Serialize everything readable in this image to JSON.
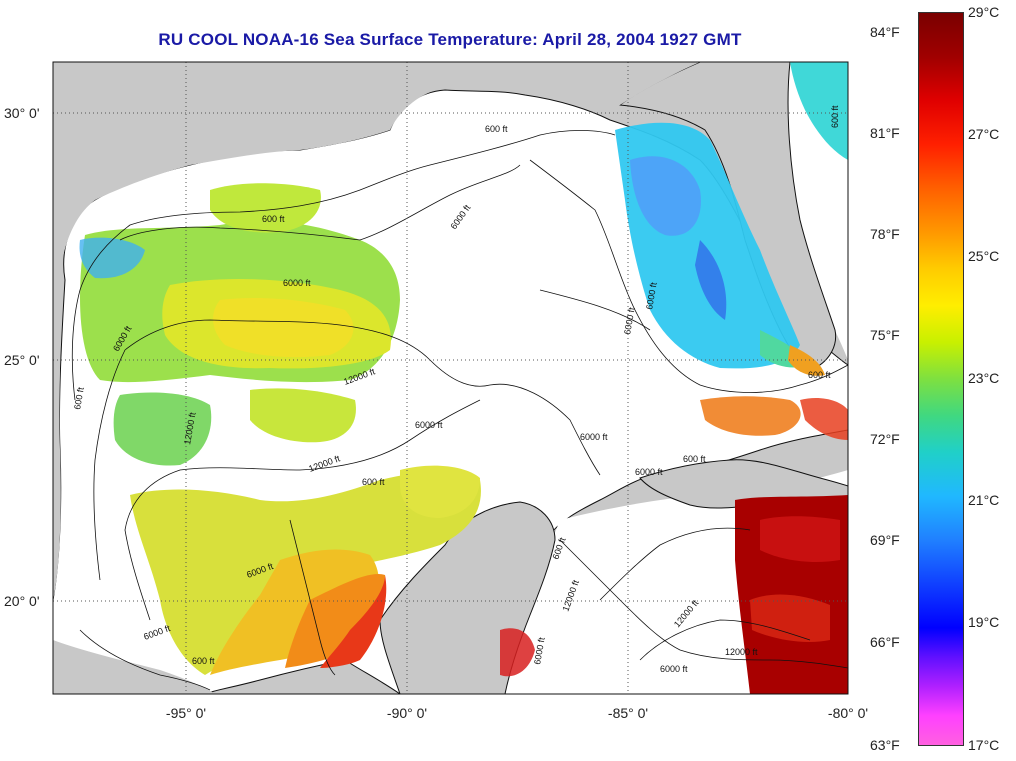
{
  "title": "RU COOL  NOAA-16  Sea Surface Temperature:  April 28, 2004 1927 GMT",
  "map": {
    "x_ticks": [
      "-95° 0'",
      "-90° 0'",
      "-85° 0'",
      "-80° 0'"
    ],
    "y_ticks": [
      "30° 0'",
      "25° 0'",
      "20° 0'"
    ],
    "lon_range": [
      -98,
      -80
    ],
    "lat_range": [
      18,
      31
    ]
  },
  "contour_labels": [
    "600 ft",
    "6000 ft",
    "12000 ft"
  ],
  "colorbar": {
    "fahrenheit_ticks": [
      "84°F",
      "81°F",
      "78°F",
      "75°F",
      "72°F",
      "69°F",
      "66°F",
      "63°F"
    ],
    "celsius_ticks": [
      "29°C",
      "27°C",
      "25°C",
      "23°C",
      "21°C",
      "19°C",
      "17°C"
    ],
    "range_celsius": [
      17,
      29
    ]
  }
}
